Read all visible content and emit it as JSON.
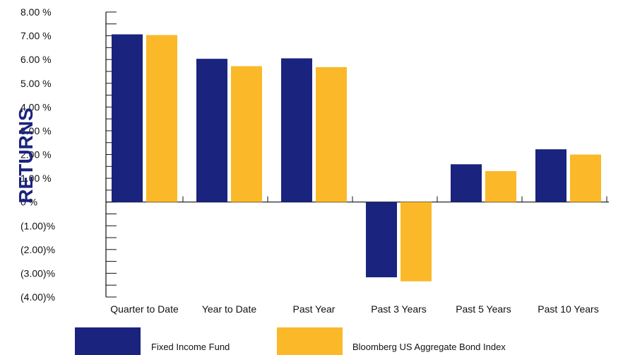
{
  "chart_data": {
    "type": "bar",
    "title": "",
    "xlabel": "",
    "ylabel": "RETURNS",
    "ylim": [
      -4,
      8
    ],
    "ytick_values": [
      8,
      7,
      6,
      5,
      4,
      3,
      2,
      1,
      0,
      -1,
      -2,
      -3,
      -4
    ],
    "ytick_labels": [
      "8.00 %",
      "7.00 %",
      "6.00 %",
      "5.00 %",
      "4.00 %",
      "3.00 %",
      "2.00 %",
      "1.00 %",
      "0 %",
      "(1.00)%",
      "(2.00)%",
      "(3.00)%",
      "(4.00)%"
    ],
    "categories": [
      "Quarter to Date",
      "Year to Date",
      "Past Year",
      "Past 3 Years",
      "Past 5 Years",
      "Past 10 Years"
    ],
    "series": [
      {
        "name": "Fixed Income Fund",
        "color": "#1a237e",
        "values": [
          7.06,
          6.03,
          6.05,
          -3.17,
          1.59,
          2.22
        ]
      },
      {
        "name": "Bloomberg US Aggregate Bond Index",
        "color": "#fbb829",
        "values": [
          7.03,
          5.72,
          5.68,
          -3.34,
          1.3,
          2.0
        ]
      }
    ],
    "grid": false,
    "legend_position": "bottom"
  }
}
